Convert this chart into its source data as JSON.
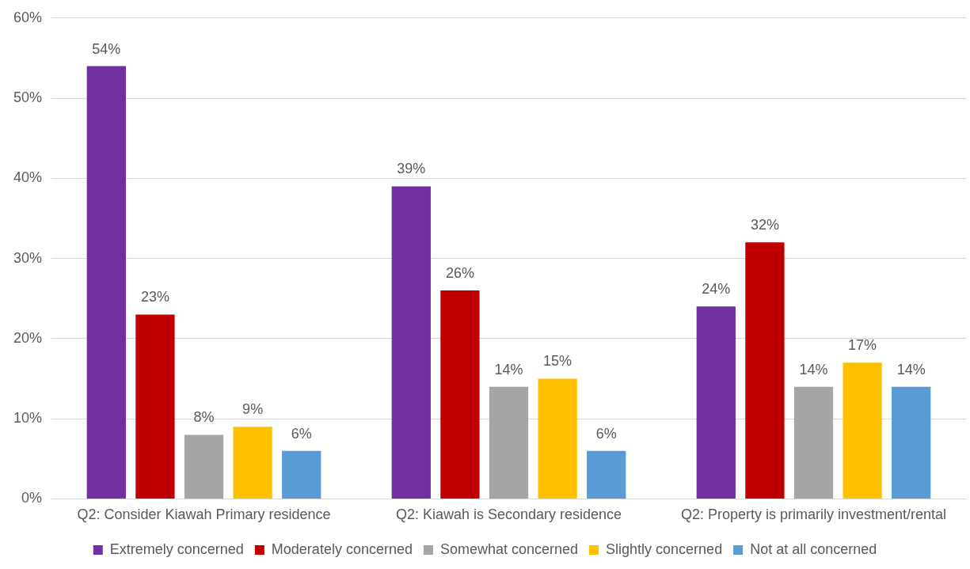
{
  "chart_data": {
    "type": "bar",
    "categories": [
      "Q2: Consider Kiawah Primary residence",
      "Q2: Kiawah is Secondary residence",
      "Q2: Property is primarily investment/rental"
    ],
    "series": [
      {
        "name": "Extremely concerned",
        "color": "#7030a0",
        "values": [
          54,
          39,
          24
        ],
        "value_labels": [
          "54%",
          "39%",
          "24%"
        ]
      },
      {
        "name": "Moderately concerned",
        "color": "#c00000",
        "values": [
          23,
          26,
          32
        ],
        "value_labels": [
          "23%",
          "26%",
          "32%"
        ]
      },
      {
        "name": "Somewhat concerned",
        "color": "#a5a5a5",
        "values": [
          8,
          14,
          14
        ],
        "value_labels": [
          "8%",
          "14%",
          "14%"
        ]
      },
      {
        "name": "Slightly concerned",
        "color": "#ffc000",
        "values": [
          9,
          15,
          17
        ],
        "value_labels": [
          "9%",
          "15%",
          "17%"
        ]
      },
      {
        "name": "Not at all concerned",
        "color": "#5b9bd5",
        "values": [
          6,
          6,
          14
        ],
        "value_labels": [
          "6%",
          "6%",
          "14%"
        ]
      }
    ],
    "ylim": [
      0,
      60
    ],
    "yticks": [
      {
        "value": 0,
        "label": "0%"
      },
      {
        "value": 10,
        "label": "10%"
      },
      {
        "value": 20,
        "label": "20%"
      },
      {
        "value": 30,
        "label": "30%"
      },
      {
        "value": 40,
        "label": "40%"
      },
      {
        "value": 50,
        "label": "50%"
      },
      {
        "value": 60,
        "label": "60%"
      }
    ],
    "grid": "y",
    "legend": "bottom"
  }
}
